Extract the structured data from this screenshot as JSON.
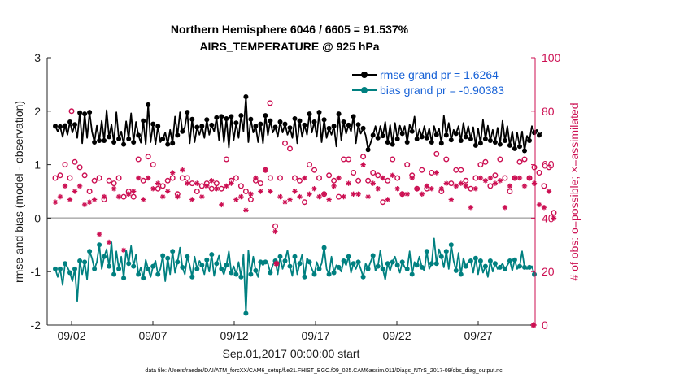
{
  "chart_data": {
    "type": "line",
    "title": "Northern Hemisphere 6046 / 6605 = 91.537%",
    "subtitle": "AIRS_TEMPERATURE @ 925 hPa",
    "xlabel": "Sep.01,2017 00:00:00 start",
    "ylabel_left": "rmse and bias (model - observation)",
    "ylabel_right": "# of obs: o=possible; ×=assimilated",
    "footnote": "data file: /Users/raeder/DAI/ATM_forcXX/CAM6_setup/f.e21.FHIST_BGC.f09_025.CAM6assim.011/Diags_NTrS_2017-09/obs_diag_output.nc",
    "xlim": [
      0.5,
      30.5
    ],
    "ylim_left": [
      -2,
      3
    ],
    "ylim_right": [
      0,
      100
    ],
    "x_tick_labels": [
      "09/02",
      "09/07",
      "09/12",
      "09/17",
      "09/22",
      "09/27"
    ],
    "x_tick_values": [
      2,
      7,
      12,
      17,
      22,
      27
    ],
    "y_left_ticks": [
      "-2",
      "-1",
      "0",
      "1",
      "2",
      "3"
    ],
    "y_right_ticks": [
      "0",
      "20",
      "40",
      "60",
      "80",
      "100"
    ],
    "legend": [
      {
        "label": "rmse grand pr = 1.6264",
        "color": "#000000"
      },
      {
        "label": "bias grand pr = -0.90383",
        "color": "#008080"
      }
    ],
    "colors": {
      "rmse": "#000000",
      "bias": "#008080",
      "obs": "#cc0f52",
      "zero_line": "#b3b3b3"
    },
    "series": [
      {
        "name": "rmse",
        "values": [
          1.72,
          1.62,
          1.71,
          1.52,
          1.73,
          1.56,
          1.8,
          1.6,
          1.75,
          1.5,
          1.97,
          1.4,
          1.95,
          1.5,
          1.98,
          1.62,
          1.42,
          1.73,
          1.45,
          1.82,
          1.45,
          2.02,
          1.52,
          1.75,
          1.42,
          1.98,
          1.48,
          1.62,
          1.38,
          1.81,
          1.48,
          1.96,
          1.42,
          1.8,
          1.55,
          1.41,
          1.82,
          1.38,
          2.12,
          1.42,
          1.76,
          1.38,
          1.72,
          1.42,
          1.48,
          1.6,
          1.38,
          1.65,
          1.4,
          1.9,
          1.55,
          1.98,
          1.62,
          1.7,
          1.98,
          1.4,
          1.85,
          1.42,
          1.7,
          1.56,
          1.72,
          1.5,
          1.84,
          1.56,
          1.74,
          1.62,
          1.88,
          1.46,
          1.9,
          1.42,
          1.86,
          1.32,
          1.9,
          1.46,
          1.78,
          1.5,
          1.92,
          1.62,
          2.27,
          1.42,
          1.85,
          1.6,
          1.72,
          1.42,
          1.76,
          1.4,
          1.92,
          1.55,
          1.82,
          1.6,
          1.7,
          1.52,
          1.8,
          1.6,
          1.76,
          1.56,
          1.69,
          1.5,
          1.86,
          1.4,
          1.82,
          1.52,
          1.74,
          1.56,
          1.95,
          1.6,
          1.8,
          1.52,
          1.98,
          1.42,
          1.84,
          1.5,
          1.68,
          1.56,
          1.72,
          1.34,
          1.95,
          1.46,
          1.8,
          1.58,
          1.74,
          1.62,
          1.9,
          1.4,
          1.75,
          1.58,
          1.68,
          1.55,
          1.28,
          1.4,
          1.55,
          1.72,
          1.5,
          1.72,
          1.54,
          1.8,
          1.42,
          1.74,
          1.38,
          1.78,
          1.48,
          1.73,
          1.58,
          1.72,
          1.42,
          1.75,
          1.62,
          1.9,
          1.48,
          1.66,
          1.52,
          1.72,
          1.5,
          1.68,
          1.42,
          1.72,
          1.56,
          1.68,
          1.4,
          1.92,
          1.55,
          1.78,
          1.46,
          1.65,
          1.58,
          1.72,
          1.45,
          1.78,
          1.52,
          1.72,
          1.48,
          1.7,
          1.36,
          1.68,
          1.4,
          1.84,
          1.48,
          1.73,
          1.45,
          1.65,
          1.42,
          1.69,
          1.38,
          1.82,
          1.45,
          1.72,
          1.36,
          1.62,
          1.3,
          1.6,
          1.34,
          1.62,
          1.26,
          1.54,
          1.45,
          1.72,
          1.6,
          1.65,
          1.55,
          1.6
        ]
      },
      {
        "name": "bias",
        "values": [
          -0.95,
          -1.1,
          -0.95,
          -1.25,
          -0.85,
          -0.92,
          -1.02,
          -1.18,
          -0.95,
          -1.55,
          -0.8,
          -1.05,
          -0.82,
          -1.15,
          -0.62,
          -0.75,
          -0.95,
          -0.82,
          -0.5,
          -0.95,
          -0.72,
          -0.58,
          -0.9,
          -0.45,
          -1.05,
          -0.62,
          -0.95,
          -0.72,
          -1.12,
          -0.6,
          -0.85,
          -0.52,
          -0.9,
          -0.68,
          -1.05,
          -0.92,
          -1.12,
          -0.78,
          -0.95,
          -1.1,
          -0.9,
          -0.8,
          -1.05,
          -0.95,
          -0.7,
          -1.18,
          -0.75,
          -1.05,
          -0.62,
          -1.02,
          -0.82,
          -0.55,
          -0.92,
          -1.05,
          -0.72,
          -0.88,
          -1.1,
          -0.72,
          -0.95,
          -0.8,
          -0.88,
          -1.05,
          -0.78,
          -1.0,
          -0.68,
          -1.08,
          -0.85,
          -0.7,
          -0.95,
          -1.05,
          -0.88,
          -0.62,
          -1.02,
          -0.9,
          -1.05,
          -0.82,
          -1.1,
          -0.68,
          -1.78,
          -0.6,
          -1.05,
          -0.72,
          -0.98,
          -1.1,
          -0.82,
          -0.88,
          -0.82,
          -0.85,
          -1.02,
          -0.88,
          -0.8,
          -1.05,
          -0.72,
          -0.95,
          -0.8,
          -0.6,
          -0.9,
          -1.08,
          -0.72,
          -1.05,
          -0.85,
          -0.68,
          -1.1,
          -0.75,
          -0.82,
          -0.95,
          -1.05,
          -0.82,
          -0.95,
          -0.85,
          -0.55,
          -0.95,
          -1.05,
          -0.72,
          -1.02,
          -0.88,
          -0.92,
          -1.0,
          -0.8,
          -0.88,
          -0.72,
          -1.02,
          -0.85,
          -0.95,
          -0.82,
          -0.95,
          -1.1,
          -0.85,
          -0.95,
          -0.82,
          -0.7,
          -0.98,
          -0.9,
          -0.6,
          -0.95,
          -1.15,
          -0.85,
          -0.98,
          -0.82,
          -0.72,
          -0.88,
          -1.02,
          -0.82,
          -0.92,
          -0.95,
          -0.62,
          -1.05,
          -0.82,
          -0.88,
          -0.72,
          -0.92,
          -0.98,
          -0.62,
          -0.95,
          -0.85,
          -0.38,
          -0.85,
          -0.58,
          -0.72,
          -0.92,
          -0.62,
          -0.95,
          -0.5,
          -0.8,
          -0.98,
          -0.65,
          -1.05,
          -0.75,
          -0.9,
          -0.82,
          -0.8,
          -1.02,
          -0.75,
          -1.05,
          -0.8,
          -1.02,
          -0.9,
          -1.1,
          -0.8,
          -1.0,
          -0.85,
          -0.95,
          -0.92,
          -0.85,
          -0.95,
          -0.88,
          -0.8,
          -0.98,
          -0.78,
          -0.95,
          -0.9,
          -0.62,
          -0.92,
          -0.95,
          -0.92,
          -0.9,
          -1.05
        ]
      },
      {
        "name": "obs_possible",
        "values": [
          55,
          61,
          56,
          59,
          60,
          57,
          55,
          58,
          61,
          57,
          59,
          54,
          56,
          83,
          50,
          60,
          54,
          56,
          55,
          57,
          47,
          58,
          54,
          57,
          53,
          48,
          55,
          55,
          48,
          59,
          50,
          52,
          48,
          57,
          62,
          57,
          54,
          51,
          63,
          50,
          60,
          56,
          51,
          57,
          52,
          50,
          54,
          59,
          55,
          62,
          49,
          63,
          55,
          56,
          55,
          58,
          53,
          55,
          50,
          54,
          52,
          57,
          53,
          55,
          51,
          60,
          53,
          51,
          51,
          52,
          62,
          48,
          54,
          60,
          55,
          58,
          52,
          54,
          50,
          53,
          47,
          59,
          54,
          56,
          53,
          54,
          58,
          48,
          55,
          54,
          37,
          62,
          55,
          62,
          68,
          50,
          66,
          62,
          55,
          58,
          54,
          66,
          46,
          51,
          60,
          55,
          58,
          65,
          55,
          62,
          49,
          57,
          56,
          61,
          54,
          63,
          48,
          53,
          62,
          55,
          62,
          54,
          57,
          58,
          54,
          59,
          63,
          48,
          54,
          60,
          57,
          53,
          56,
          57,
          46,
          51,
          54,
          59,
          62,
          55,
          55,
          58,
          49,
          55,
          60,
          62,
          56,
          62,
          51,
          55,
          58,
          64,
          51,
          55,
          57,
          60,
          64,
          56,
          50,
          54,
          62,
          52,
          53,
          60,
          58,
          56,
          58,
          62,
          54,
          55,
          51,
          59,
          55,
          60,
          60,
          53,
          61,
          58,
          52,
          58,
          56,
          60,
          62,
          56,
          55,
          58,
          50,
          53,
          55,
          53,
          61,
          58,
          62,
          56,
          55,
          52,
          59,
          55,
          57,
          62,
          52,
          56,
          59,
          44,
          42,
          53
        ]
      },
      {
        "name": "obs_assimilated",
        "values": [
          46,
          53,
          48,
          50,
          52,
          49,
          47,
          53,
          50,
          40,
          52,
          47,
          45,
          80,
          46,
          52,
          47,
          35,
          34,
          32,
          48,
          51,
          31,
          47,
          51,
          30,
          48,
          50,
          28,
          51,
          49,
          28,
          50,
          50,
          55,
          49,
          47,
          50,
          55,
          47,
          51,
          49,
          53,
          65,
          48,
          52,
          50,
          48,
          57,
          60,
          48,
          47,
          58,
          46,
          53,
          59,
          47,
          57,
          53,
          46,
          48,
          55,
          52,
          51,
          54,
          54,
          51,
          49,
          45,
          55,
          52,
          51,
          53,
          43,
          47,
          49,
          48,
          48,
          43,
          50,
          49,
          46,
          55,
          51,
          50,
          47,
          58,
          44,
          50,
          54,
          35,
          48,
          48,
          45,
          46,
          48,
          47,
          39,
          50,
          52,
          48,
          53,
          55,
          47,
          49,
          50,
          51,
          55,
          48,
          52,
          49,
          51,
          47,
          50,
          52,
          56,
          55,
          48,
          48,
          51,
          53,
          50,
          49,
          52,
          49,
          56,
          60,
          49,
          48,
          50,
          53,
          49,
          51,
          56,
          55,
          50,
          47,
          49,
          56,
          53,
          51,
          52,
          49,
          47,
          49,
          52,
          55,
          48,
          51,
          50,
          49,
          44,
          52,
          53,
          51,
          47,
          57,
          49,
          51,
          50,
          53,
          45,
          47,
          44,
          52,
          51,
          53,
          55,
          52,
          48,
          44,
          45,
          51,
          56,
          55,
          54,
          54,
          52,
          55,
          51,
          53,
          49,
          54,
          43,
          44,
          53,
          52,
          57,
          55,
          48,
          55,
          49,
          52,
          50,
          55,
          52,
          53,
          48,
          45,
          44,
          44,
          46,
          50,
          44,
          40,
          53
        ]
      }
    ],
    "extra_markers": [
      {
        "series": "bias",
        "x": 14.6,
        "y": -0.85,
        "marker": "star"
      },
      {
        "series": "obs",
        "x": 30.4,
        "y_right": 0,
        "marker": "star"
      },
      {
        "series": "obs",
        "x": 2.0,
        "y_right": 80,
        "marker": "circle"
      },
      {
        "series": "obs",
        "x": 14.2,
        "y_right": 83,
        "marker": "circle"
      }
    ]
  }
}
